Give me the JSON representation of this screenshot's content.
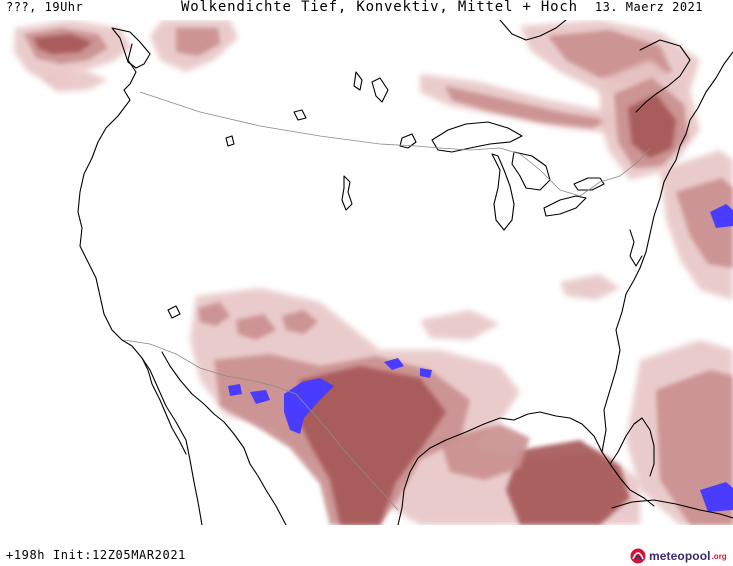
{
  "header": {
    "location_time": "???, 19Uhr",
    "title": "Wolkendichte  Tief, Konvektiv, Mittel + Hoch",
    "date": "13. Maerz 2021"
  },
  "footer": {
    "forecast_info": "+198h Init:12Z05MAR2021",
    "logo_text": "meteopool",
    "logo_tld": ".org"
  },
  "legend_colors": {
    "cloud_light": "#e8c6c6",
    "cloud_medium": "#c98f8f",
    "cloud_dense": "#a65757",
    "cloud_max": "#4a3cff",
    "coastline": "#000000",
    "border": "#8a8a8a"
  }
}
